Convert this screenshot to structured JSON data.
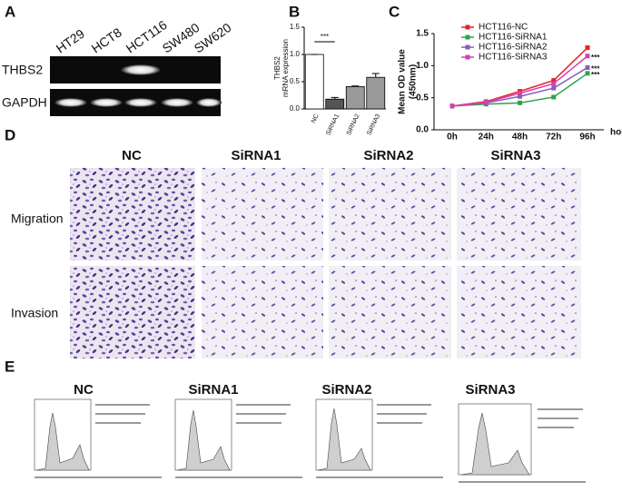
{
  "panel_letters": [
    "A",
    "B",
    "C",
    "D",
    "E"
  ],
  "panel_a": {
    "lanes": [
      "HT29",
      "HCT8",
      "HCT116",
      "SW480",
      "SW620"
    ],
    "rows": [
      "THBS2",
      "GAPDH"
    ]
  },
  "panel_d": {
    "columns": [
      "NC",
      "SiRNA1",
      "SiRNA2",
      "SiRNA3"
    ],
    "rows": [
      "Migration",
      "Invasion"
    ]
  },
  "panel_e": {
    "titles": [
      "NC",
      "SiRNA1",
      "SiRNA2",
      "SiRNA3"
    ]
  },
  "chart_data": [
    {
      "type": "bar",
      "y_label": [
        "THBS2",
        "mRNA expression"
      ],
      "categories": [
        "NC",
        "SiRNA1",
        "SiRNA2",
        "SiRNA3"
      ],
      "values": [
        1.0,
        0.18,
        0.41,
        0.58
      ],
      "errors": [
        0.0,
        0.03,
        0.01,
        0.07
      ],
      "colors": [
        "#ffffff",
        "#555555",
        "#9a9a9a",
        "#9a9a9a"
      ],
      "ylim": [
        0,
        1.5
      ],
      "yticks": [
        {
          "value": 0,
          "label": "0.0"
        },
        {
          "value": 0.5,
          "label": "0.5"
        },
        {
          "value": 1.0,
          "label": "1.0"
        },
        {
          "value": 1.5,
          "label": "1.5"
        }
      ],
      "annotations": [
        "***"
      ]
    },
    {
      "type": "line",
      "y_label": [
        "Mean OD value",
        "(450nm)"
      ],
      "x_label": "hours",
      "categories": [
        "0h",
        "24h",
        "48h",
        "72h",
        "96h"
      ],
      "series": [
        {
          "name": "HCT116-NC",
          "color": "#e8202a",
          "values": [
            0.37,
            0.44,
            0.6,
            0.77,
            1.28
          ]
        },
        {
          "name": "HCT116-SiRNA1",
          "color": "#2ea44a",
          "values": [
            0.37,
            0.4,
            0.42,
            0.51,
            0.88
          ]
        },
        {
          "name": "HCT116-SiRNA2",
          "color": "#8a5db8",
          "values": [
            0.37,
            0.42,
            0.52,
            0.65,
            0.97
          ]
        },
        {
          "name": "HCT116-SiRNA3",
          "color": "#d63fb0",
          "values": [
            0.37,
            0.43,
            0.57,
            0.72,
            1.15
          ]
        }
      ],
      "ylim": [
        0,
        1.5
      ],
      "yticks": [
        {
          "value": 0,
          "label": "0.0"
        },
        {
          "value": 0.5,
          "label": "0.5"
        },
        {
          "value": 1.0,
          "label": "1.0"
        },
        {
          "value": 1.5,
          "label": "1.5"
        }
      ],
      "annotations": [
        "***",
        "***",
        "***"
      ]
    }
  ]
}
